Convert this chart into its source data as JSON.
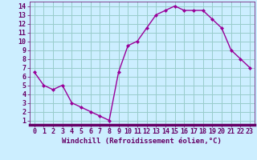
{
  "x": [
    0,
    1,
    2,
    3,
    4,
    5,
    6,
    7,
    8,
    9,
    10,
    11,
    12,
    13,
    14,
    15,
    16,
    17,
    18,
    19,
    20,
    21,
    22,
    23
  ],
  "y": [
    6.5,
    5.0,
    4.5,
    5.0,
    3.0,
    2.5,
    2.0,
    1.5,
    1.0,
    6.5,
    9.5,
    10.0,
    11.5,
    13.0,
    13.5,
    14.0,
    13.5,
    13.5,
    13.5,
    12.5,
    11.5,
    9.0,
    8.0,
    7.0
  ],
  "line_color": "#990099",
  "marker": "D",
  "marker_size": 2.0,
  "bg_color": "#cceeff",
  "grid_color": "#99cccc",
  "xlabel": "Windchill (Refroidissement éolien,°C)",
  "xlim": [
    -0.5,
    23.5
  ],
  "ylim": [
    0.5,
    14.5
  ],
  "yticks": [
    1,
    2,
    3,
    4,
    5,
    6,
    7,
    8,
    9,
    10,
    11,
    12,
    13,
    14
  ],
  "xticks": [
    0,
    1,
    2,
    3,
    4,
    5,
    6,
    7,
    8,
    9,
    10,
    11,
    12,
    13,
    14,
    15,
    16,
    17,
    18,
    19,
    20,
    21,
    22,
    23
  ],
  "tick_label_color": "#660066",
  "axis_color": "#660066",
  "xlabel_color": "#660066",
  "xlabel_fontsize": 6.5,
  "tick_fontsize": 6.0,
  "linewidth": 1.0,
  "separator_color": "#660066"
}
